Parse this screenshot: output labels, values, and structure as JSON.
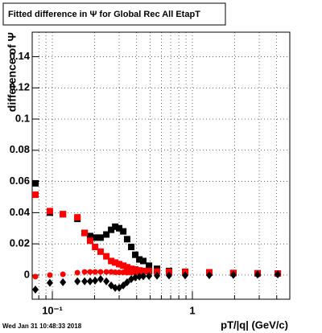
{
  "chart_data": {
    "type": "scatter",
    "title": "Fitted difference in Ψ  for Global Rec All EtapT",
    "ylabel": "difference of Ψ",
    "xlabel": "pT/|q| (GeV/c)",
    "timestamp": "Wed Jan 31 10:48:33 2018",
    "xlog": true,
    "grid": true,
    "xlim": [
      0.0718,
      4.96
    ],
    "ylim": [
      -0.0155,
      0.1557
    ],
    "xticks": [
      {
        "value": 0.1,
        "label": "10⁻¹"
      },
      1
    ],
    "xminor": [
      0.08,
      0.09,
      0.2,
      0.3,
      0.4,
      0.5,
      0.6,
      0.7,
      0.8,
      0.9,
      2,
      3,
      4
    ],
    "yticks": [
      0,
      0.02,
      0.04,
      0.06,
      0.08,
      0.1,
      0.12,
      0.14
    ],
    "x": [
      0.0757,
      0.096,
      0.119,
      0.151,
      0.17,
      0.186,
      0.202,
      0.221,
      0.243,
      0.263,
      0.281,
      0.3,
      0.321,
      0.342,
      0.366,
      0.391,
      0.418,
      0.446,
      0.49,
      0.559,
      0.681,
      0.888,
      1.32,
      1.96,
      2.92,
      4.07
    ],
    "series": [
      {
        "color": "#000000",
        "marker": "square",
        "values": [
          0.0588,
          0.04,
          0.039,
          0.036,
          0.027,
          0.025,
          0.024,
          0.024,
          0.026,
          0.029,
          0.031,
          0.03,
          0.028,
          0.023,
          0.018,
          0.013,
          0.01,
          0.009,
          0.006,
          0.004,
          0.0026,
          0.0021,
          0.0017,
          0.0013,
          0.0011,
          0.001
        ]
      },
      {
        "color": "#ff0000",
        "marker": "square",
        "values": [
          0.0515,
          0.041,
          0.039,
          0.037,
          0.027,
          0.022,
          0.018,
          0.015,
          0.012,
          0.009,
          0.008,
          0.007,
          0.006,
          0.005,
          0.004,
          0.0036,
          0.003,
          0.0026,
          0.0025,
          0.0023,
          0.0021,
          0.0019,
          0.0016,
          0.0013,
          0.0011,
          0.001
        ]
      },
      {
        "color": "#ff0000",
        "marker": "circle",
        "values": [
          -0.001,
          0,
          0.0005,
          0.0015,
          0.002,
          0.002,
          0.002,
          0.002,
          0.002,
          0.002,
          0.0018,
          0.0017,
          0.0017,
          0.0016,
          0.0016,
          0.0015,
          0.0015,
          0.0014,
          0.0013,
          0.0012,
          0.0011,
          0.001,
          0.0009,
          0.0008,
          0.0007,
          0.0006
        ]
      },
      {
        "color": "#000000",
        "marker": "diamond",
        "values": [
          -0.0093,
          -0.005,
          -0.0046,
          -0.004,
          -0.004,
          -0.004,
          -0.0036,
          -0.0026,
          -0.004,
          -0.0067,
          -0.0082,
          -0.0082,
          -0.0067,
          -0.0046,
          -0.0026,
          -0.0015,
          -0.001,
          -0.0008,
          -0.0006,
          -0.0004,
          -0.0003,
          -0.0002,
          -0.0001,
          0.0001,
          0.0003,
          0.0004
        ]
      }
    ]
  }
}
